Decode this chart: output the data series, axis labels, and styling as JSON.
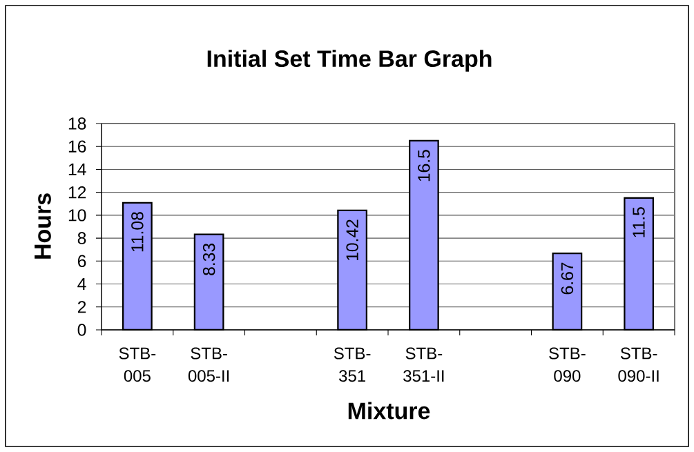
{
  "chart_data": {
    "type": "bar",
    "title": "Initial Set Time Bar Graph",
    "xlabel": "Mixture",
    "ylabel": "Hours",
    "categories": [
      "STB-005",
      "STB-005-II",
      null,
      "STB-351",
      "STB-351-II",
      null,
      "STB-090",
      "STB-090-II"
    ],
    "values": [
      11.08,
      8.33,
      null,
      10.42,
      16.5,
      null,
      6.67,
      11.5
    ],
    "color": "#9999ff",
    "ylim": [
      0,
      18
    ],
    "yticks": [
      0,
      2,
      4,
      6,
      8,
      10,
      12,
      14,
      16,
      18
    ],
    "grid": "y",
    "data_labels": true
  }
}
